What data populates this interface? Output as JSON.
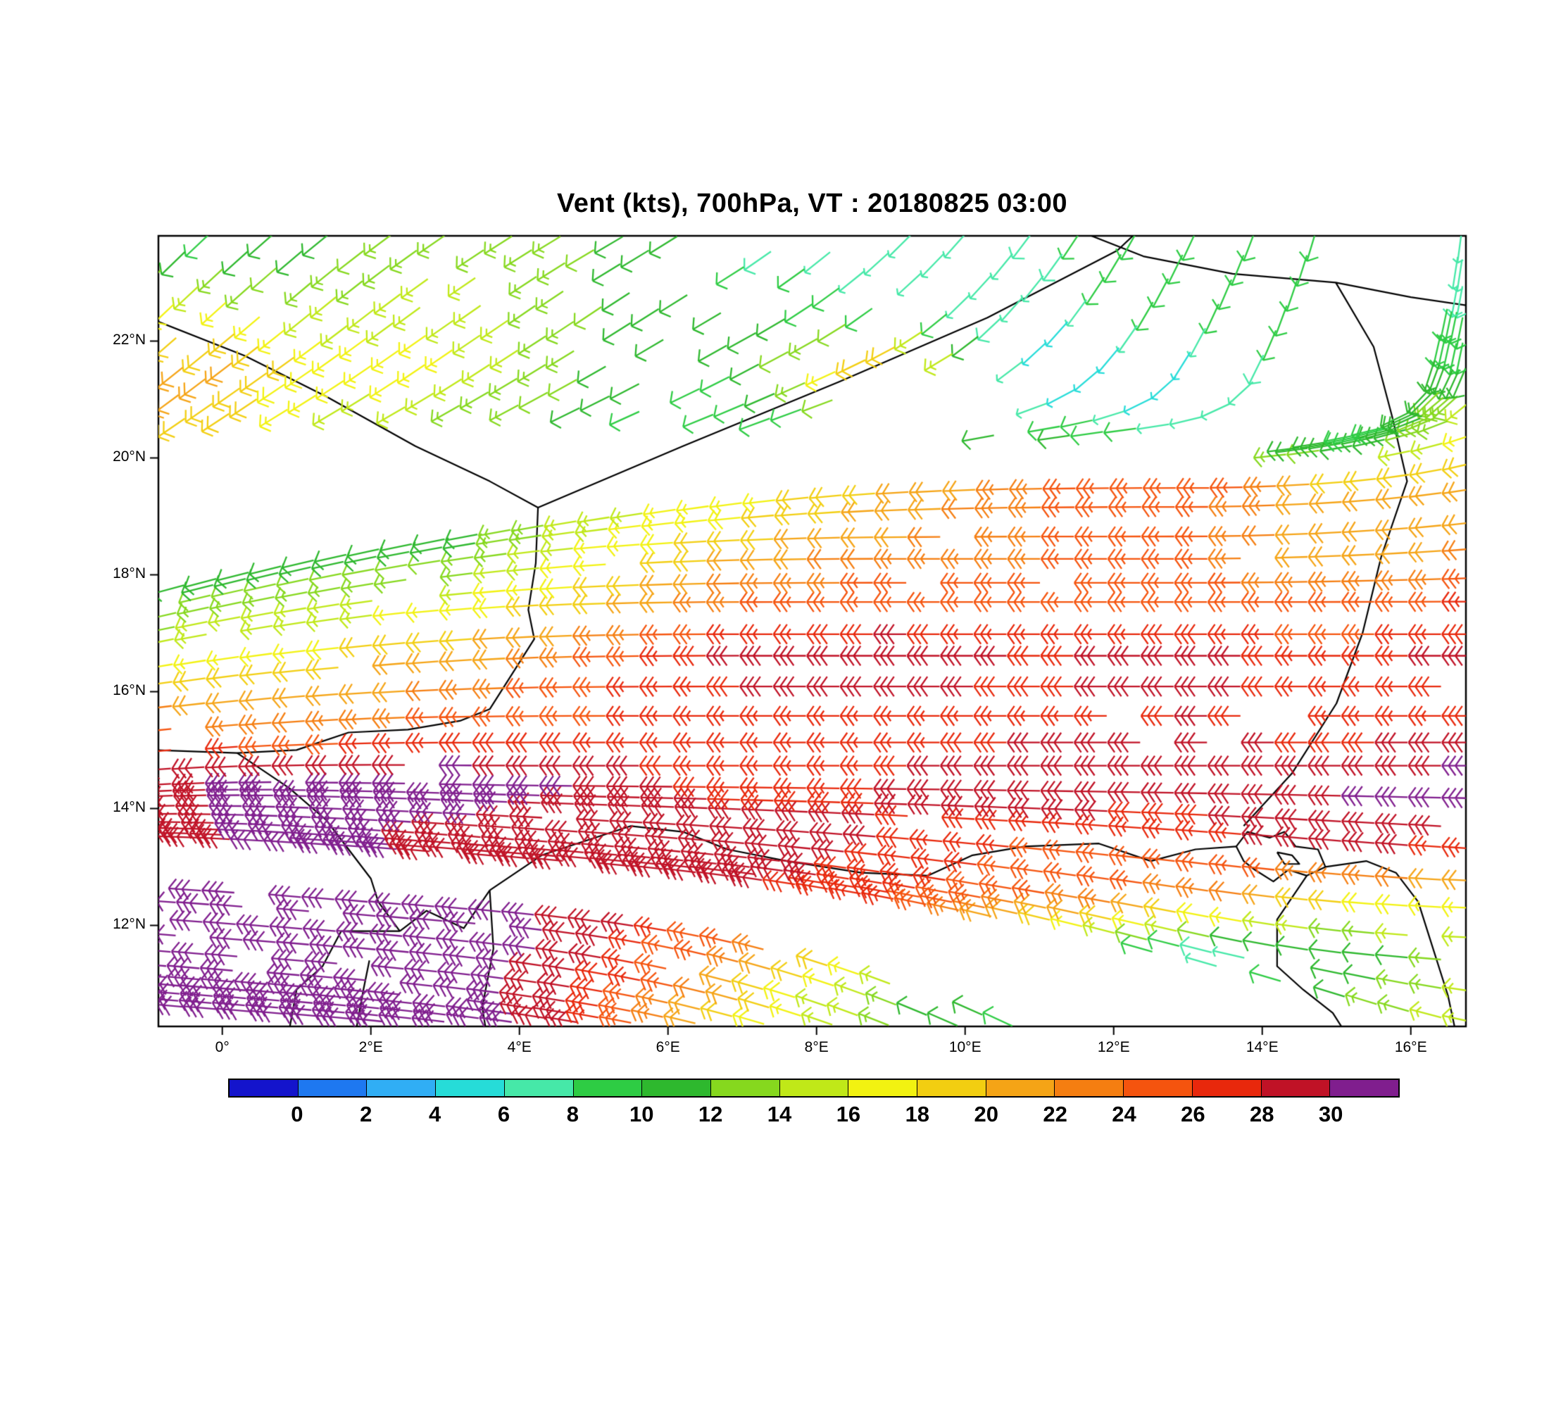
{
  "title": "Vent (kts), 700hPa, VT : 20180825  03:00",
  "axes": {
    "x_ticks": [
      {
        "lon": 0,
        "label": "0°"
      },
      {
        "lon": 2,
        "label": "2°E"
      },
      {
        "lon": 4,
        "label": "4°E"
      },
      {
        "lon": 6,
        "label": "6°E"
      },
      {
        "lon": 8,
        "label": "8°E"
      },
      {
        "lon": 10,
        "label": "10°E"
      },
      {
        "lon": 12,
        "label": "12°E"
      },
      {
        "lon": 14,
        "label": "14°E"
      },
      {
        "lon": 16,
        "label": "16°E"
      }
    ],
    "y_ticks": [
      {
        "lat": 12,
        "label": "12°N"
      },
      {
        "lat": 14,
        "label": "14°N"
      },
      {
        "lat": 16,
        "label": "16°N"
      },
      {
        "lat": 18,
        "label": "18°N"
      },
      {
        "lat": 20,
        "label": "20°N"
      },
      {
        "lat": 22,
        "label": "22°N"
      }
    ]
  },
  "colorbar": {
    "labels": [
      "0",
      "2",
      "4",
      "6",
      "8",
      "10",
      "12",
      "14",
      "16",
      "18",
      "20",
      "22",
      "24",
      "26",
      "28",
      "30"
    ],
    "colors": [
      "#1414CC",
      "#1E78F0",
      "#30AEF5",
      "#26DCD8",
      "#46E8A8",
      "#2ECC44",
      "#2EB82E",
      "#86D81E",
      "#C0E818",
      "#F2F211",
      "#F2CE11",
      "#F5A416",
      "#F57E11",
      "#F5540E",
      "#E8280C",
      "#C01226",
      "#801E8E"
    ]
  },
  "chart_data": {
    "type": "wind_barbs",
    "title": "Vent (kts), 700hPa, VT : 20180825  03:00",
    "variable": "Vent",
    "units": "kts",
    "level": "700hPa",
    "valid_time": "20180825 03:00",
    "lon_range": [
      -0.86,
      16.74
    ],
    "lat_range": [
      10.27,
      23.8
    ],
    "color_levels": [
      0,
      2,
      4,
      6,
      8,
      10,
      12,
      14,
      16,
      18,
      20,
      22,
      24,
      26,
      28,
      30
    ],
    "grid": {
      "lons": [
        -1,
        1,
        3,
        5,
        7,
        9,
        11,
        13,
        15,
        17
      ],
      "lats": [
        10.5,
        11.5,
        12.5,
        13.5,
        14.5,
        15.5,
        16.5,
        17.5,
        18.5,
        19.5,
        20.5,
        21.5,
        22.5,
        23.5
      ],
      "speed_kts": [
        [
          32,
          32,
          32,
          27,
          18,
          12,
          9,
          8,
          13,
          16
        ],
        [
          31,
          32,
          32,
          28,
          22,
          15,
          9,
          6,
          10,
          14
        ],
        [
          32,
          32,
          31,
          30,
          28,
          26,
          24,
          23,
          19,
          18
        ],
        [
          29,
          31,
          29,
          28,
          30,
          28,
          26,
          26,
          30,
          28
        ],
        [
          29,
          31,
          32,
          30,
          26,
          28,
          31,
          30,
          30,
          31
        ],
        [
          24,
          22,
          25,
          26,
          26,
          26,
          27,
          28,
          26,
          28
        ],
        [
          16,
          18,
          21,
          25,
          30,
          30,
          28,
          30,
          26,
          30
        ],
        [
          12,
          14,
          16,
          20,
          24,
          26,
          24,
          26,
          24,
          27
        ],
        [
          9,
          10,
          11,
          16,
          20,
          22,
          24,
          24,
          20,
          22
        ],
        [
          22,
          20,
          12,
          14,
          16,
          20,
          24,
          26,
          20,
          22
        ],
        [
          20,
          16,
          13,
          10,
          8,
          10,
          9,
          7,
          6,
          18
        ],
        [
          22,
          18,
          16,
          12,
          10,
          24,
          3,
          4,
          12,
          10
        ],
        [
          18,
          14,
          16,
          12,
          10,
          8,
          6,
          10,
          10,
          8
        ],
        [
          9,
          11,
          14,
          12,
          8,
          6,
          8,
          10,
          8,
          6
        ]
      ],
      "dir_from_deg": [
        [
          95,
          95,
          97,
          100,
          106,
          112,
          116,
          120,
          112,
          100
        ],
        [
          95,
          95,
          96,
          100,
          105,
          110,
          110,
          105,
          97,
          92
        ],
        [
          94,
          95,
          95,
          96,
          100,
          101,
          100,
          99,
          95,
          92
        ],
        [
          92,
          94,
          95,
          95,
          95,
          95,
          95,
          95,
          95,
          94
        ],
        [
          86,
          90,
          91,
          90,
          90,
          90,
          90,
          90,
          90,
          90
        ],
        [
          84,
          86,
          89,
          90,
          90,
          90,
          90,
          90,
          90,
          90
        ],
        [
          80,
          84,
          86,
          89,
          90,
          90,
          90,
          90,
          90,
          90
        ],
        [
          76,
          80,
          85,
          88,
          90,
          90,
          90,
          90,
          90,
          90
        ],
        [
          70,
          75,
          80,
          85,
          88,
          90,
          90,
          90,
          87,
          85
        ],
        [
          60,
          66,
          71,
          76,
          81,
          86,
          89,
          90,
          86,
          80
        ],
        [
          55,
          60,
          62,
          66,
          70,
          76,
          80,
          84,
          78,
          68
        ],
        [
          50,
          55,
          56,
          60,
          62,
          66,
          50,
          32,
          20,
          10
        ],
        [
          46,
          50,
          55,
          56,
          60,
          52,
          40,
          26,
          16,
          10
        ],
        [
          45,
          50,
          56,
          60,
          56,
          46,
          36,
          25,
          15,
          6
        ]
      ]
    },
    "map_outlines": [
      [
        [
          -0.9,
          22.35
        ],
        [
          0.3,
          21.75
        ],
        [
          1.4,
          21.05
        ],
        [
          2.6,
          20.2
        ],
        [
          3.6,
          19.6
        ],
        [
          4.25,
          19.15
        ]
      ],
      [
        [
          4.25,
          19.15
        ],
        [
          6.2,
          20.2
        ],
        [
          8.3,
          21.3
        ],
        [
          10.3,
          22.4
        ],
        [
          12.05,
          23.55
        ],
        [
          12.3,
          23.85
        ]
      ],
      [
        [
          11.6,
          23.85
        ],
        [
          12.4,
          23.45
        ],
        [
          13.6,
          23.15
        ],
        [
          14.99,
          23.0
        ],
        [
          16.0,
          22.75
        ],
        [
          16.8,
          22.6
        ]
      ],
      [
        [
          14.99,
          23.0
        ],
        [
          15.5,
          21.9
        ],
        [
          15.75,
          20.7
        ],
        [
          15.95,
          19.6
        ],
        [
          15.6,
          18.3
        ],
        [
          15.35,
          17.0
        ],
        [
          15.0,
          15.8
        ],
        [
          14.4,
          14.6
        ],
        [
          13.75,
          13.7
        ]
      ],
      [
        [
          4.25,
          19.15
        ],
        [
          4.22,
          18.2
        ],
        [
          4.12,
          17.4
        ],
        [
          4.2,
          16.9
        ],
        [
          3.85,
          16.2
        ],
        [
          3.6,
          15.7
        ],
        [
          3.2,
          15.5
        ],
        [
          2.5,
          15.35
        ],
        [
          1.7,
          15.3
        ],
        [
          1.0,
          15.0
        ],
        [
          0.2,
          14.95
        ],
        [
          -0.9,
          15.0
        ]
      ],
      [
        [
          0.2,
          14.95
        ],
        [
          0.9,
          14.35
        ],
        [
          1.4,
          13.8
        ],
        [
          2.0,
          12.8
        ],
        [
          2.1,
          12.4
        ],
        [
          2.39,
          11.9
        ]
      ],
      [
        [
          2.39,
          11.9
        ],
        [
          2.75,
          12.25
        ],
        [
          3.25,
          11.95
        ],
        [
          3.6,
          12.6
        ]
      ],
      [
        [
          3.6,
          12.6
        ],
        [
          3.65,
          11.6
        ],
        [
          3.5,
          10.6
        ],
        [
          3.55,
          10.2
        ]
      ],
      [
        [
          3.6,
          12.6
        ],
        [
          4.3,
          13.2
        ],
        [
          4.9,
          13.45
        ],
        [
          5.5,
          13.7
        ],
        [
          6.2,
          13.6
        ],
        [
          6.8,
          13.3
        ],
        [
          7.6,
          13.1
        ],
        [
          8.6,
          12.9
        ],
        [
          9.5,
          12.85
        ],
        [
          10.1,
          13.2
        ],
        [
          10.8,
          13.35
        ],
        [
          11.8,
          13.4
        ],
        [
          12.5,
          13.1
        ],
        [
          13.1,
          13.3
        ],
        [
          13.65,
          13.35
        ]
      ],
      [
        [
          13.65,
          13.35
        ],
        [
          13.8,
          13.6
        ],
        [
          14.1,
          13.5
        ],
        [
          14.3,
          13.6
        ],
        [
          14.45,
          13.35
        ],
        [
          14.75,
          13.3
        ],
        [
          14.85,
          13.0
        ],
        [
          14.6,
          12.85
        ],
        [
          14.35,
          12.95
        ],
        [
          14.15,
          12.75
        ],
        [
          13.9,
          12.95
        ],
        [
          13.75,
          13.1
        ],
        [
          13.65,
          13.35
        ]
      ],
      [
        [
          14.2,
          13.25
        ],
        [
          14.4,
          13.2
        ],
        [
          14.5,
          13.05
        ],
        [
          14.3,
          13.05
        ],
        [
          14.2,
          13.25
        ]
      ],
      [
        [
          14.6,
          12.85
        ],
        [
          14.2,
          12.1
        ],
        [
          14.2,
          11.3
        ],
        [
          14.55,
          10.9
        ],
        [
          14.95,
          10.5
        ],
        [
          15.1,
          10.2
        ]
      ],
      [
        [
          14.85,
          13.0
        ],
        [
          15.4,
          13.1
        ],
        [
          15.8,
          12.9
        ],
        [
          16.1,
          12.4
        ],
        [
          16.3,
          11.6
        ],
        [
          16.5,
          10.8
        ],
        [
          16.6,
          10.2
        ]
      ],
      [
        [
          0.9,
          10.2
        ],
        [
          1.0,
          10.9
        ],
        [
          1.35,
          11.3
        ],
        [
          1.6,
          11.9
        ],
        [
          2.39,
          11.9
        ]
      ],
      [
        [
          1.8,
          10.2
        ],
        [
          1.9,
          10.9
        ],
        [
          1.98,
          11.4
        ]
      ]
    ]
  }
}
